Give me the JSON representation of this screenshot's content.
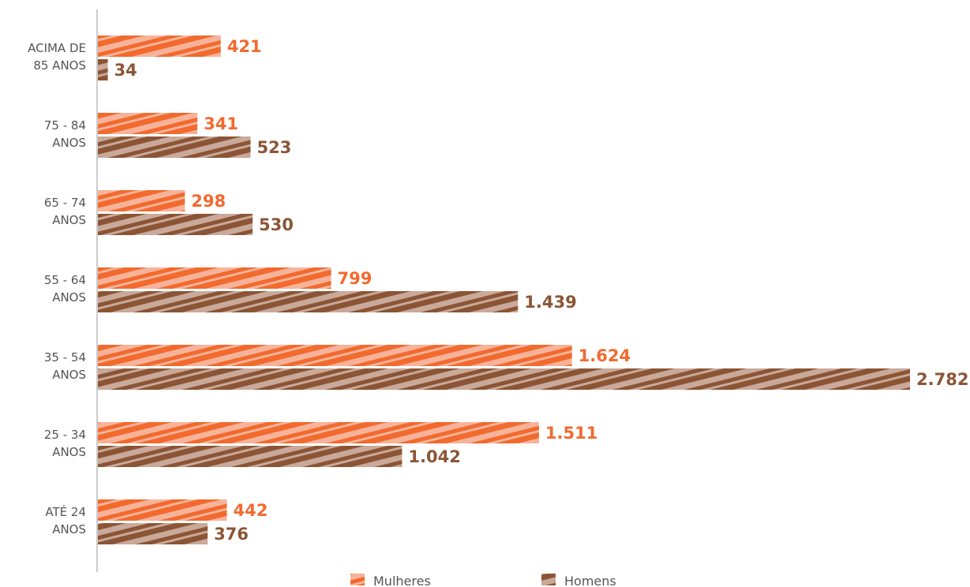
{
  "chart_data": {
    "type": "bar",
    "orientation": "horizontal",
    "categories": [
      [
        "ACIMA DE",
        "85 ANOS"
      ],
      [
        "75 - 84",
        "ANOS"
      ],
      [
        "65 - 74",
        "ANOS"
      ],
      [
        "55 - 64",
        "ANOS"
      ],
      [
        "35 - 54",
        "ANOS"
      ],
      [
        "25 - 34",
        "ANOS"
      ],
      [
        "ATÉ 24",
        "ANOS"
      ]
    ],
    "series": [
      {
        "name": "Mulheres",
        "values": [
          421,
          341,
          298,
          799,
          1624,
          1511,
          442
        ],
        "labels": [
          "421",
          "341",
          "298",
          "799",
          "1.624",
          "1.511",
          "442"
        ],
        "color": "#F26A2E",
        "stripe_color": "#F7B39A"
      },
      {
        "name": "Homens",
        "values": [
          34,
          523,
          530,
          1439,
          2782,
          1042,
          376
        ],
        "labels": [
          "34",
          "523",
          "530",
          "1.439",
          "2.782",
          "1.042",
          "376"
        ],
        "color": "#8B5535",
        "stripe_color": "#C9A99A"
      }
    ],
    "title": "",
    "xlabel": "",
    "ylabel": "",
    "xlim": [
      0,
      2782
    ],
    "grid": false,
    "legend_position": "bottom-center"
  }
}
